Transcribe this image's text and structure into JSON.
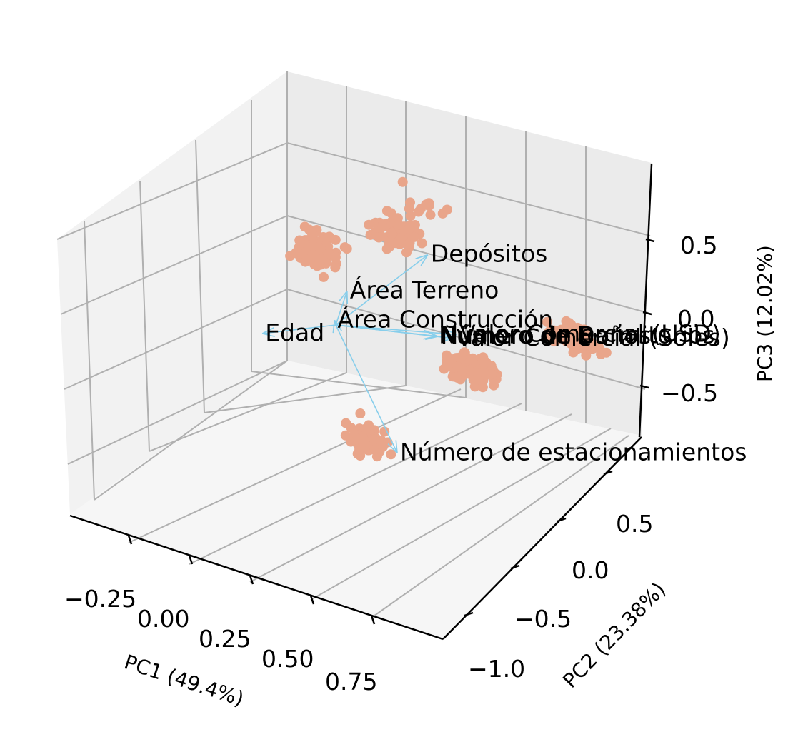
{
  "chart_data": {
    "type": "scatter",
    "projection": "3d",
    "title": "",
    "xlabel": "PC1 (49.4%)",
    "ylabel": "PC2 (23.38%)",
    "zlabel": "PC3 (12.02%)",
    "xticks": [
      "−0.25",
      "0.00",
      "0.25",
      "0.50",
      "0.75"
    ],
    "yticks": [
      "0.5",
      "0.0",
      "−0.5",
      "−1.0"
    ],
    "zticks": [
      "0.5",
      "0.0",
      "−0.5"
    ],
    "xlim": [
      -0.4,
      0.85
    ],
    "ylim": [
      -1.2,
      0.75
    ],
    "zlim": [
      -0.75,
      0.75
    ],
    "grid": true,
    "point_color": "#E9A58A",
    "arrow_color": "#87CEEB",
    "scores_clusters": [
      {
        "name": "",
        "x": -0.25,
        "y": 0.55,
        "z": 0.05,
        "count": 90
      },
      {
        "name": "",
        "x": 0.02,
        "y": 0.55,
        "z": 0.35,
        "count": 70
      },
      {
        "name": "",
        "x": 0.1,
        "y": 0.6,
        "z": 0.55,
        "count": 12
      },
      {
        "name": "",
        "x": 0.45,
        "y": -0.05,
        "z": 0.05,
        "count": 120
      },
      {
        "name": "",
        "x": 0.2,
        "y": -0.35,
        "z": -0.45,
        "count": 60
      },
      {
        "name": "",
        "x": 0.65,
        "y": 0.35,
        "z": 0.2,
        "count": 70
      }
    ],
    "loadings": [
      {
        "label": "Depósitos",
        "x": 0.28,
        "y": 0.12,
        "z": 0.62
      },
      {
        "label": "Área Terreno",
        "x": -0.02,
        "y": 0.18,
        "z": 0.12
      },
      {
        "label": "Área Construcción",
        "x": -0.04,
        "y": 0.1,
        "z": -0.05
      },
      {
        "label": "Edad",
        "x": -0.32,
        "y": 0.2,
        "z": -0.4
      },
      {
        "label": "Número de estacionamientos",
        "x": 0.35,
        "y": -0.5,
        "z": -0.35
      },
      {
        "label": "Valor Comercial (USD)",
        "x": 0.3,
        "y": 0.25,
        "z": 0.02
      },
      {
        "label": "Valor Comercial (Soles)",
        "x": 0.3,
        "y": 0.22,
        "z": 0.01
      },
      {
        "label": "Número de Dormitorios",
        "x": 0.25,
        "y": 0.2,
        "z": 0.0
      },
      {
        "label": "Número de Baños",
        "x": 0.26,
        "y": 0.19,
        "z": 0.01
      }
    ]
  }
}
